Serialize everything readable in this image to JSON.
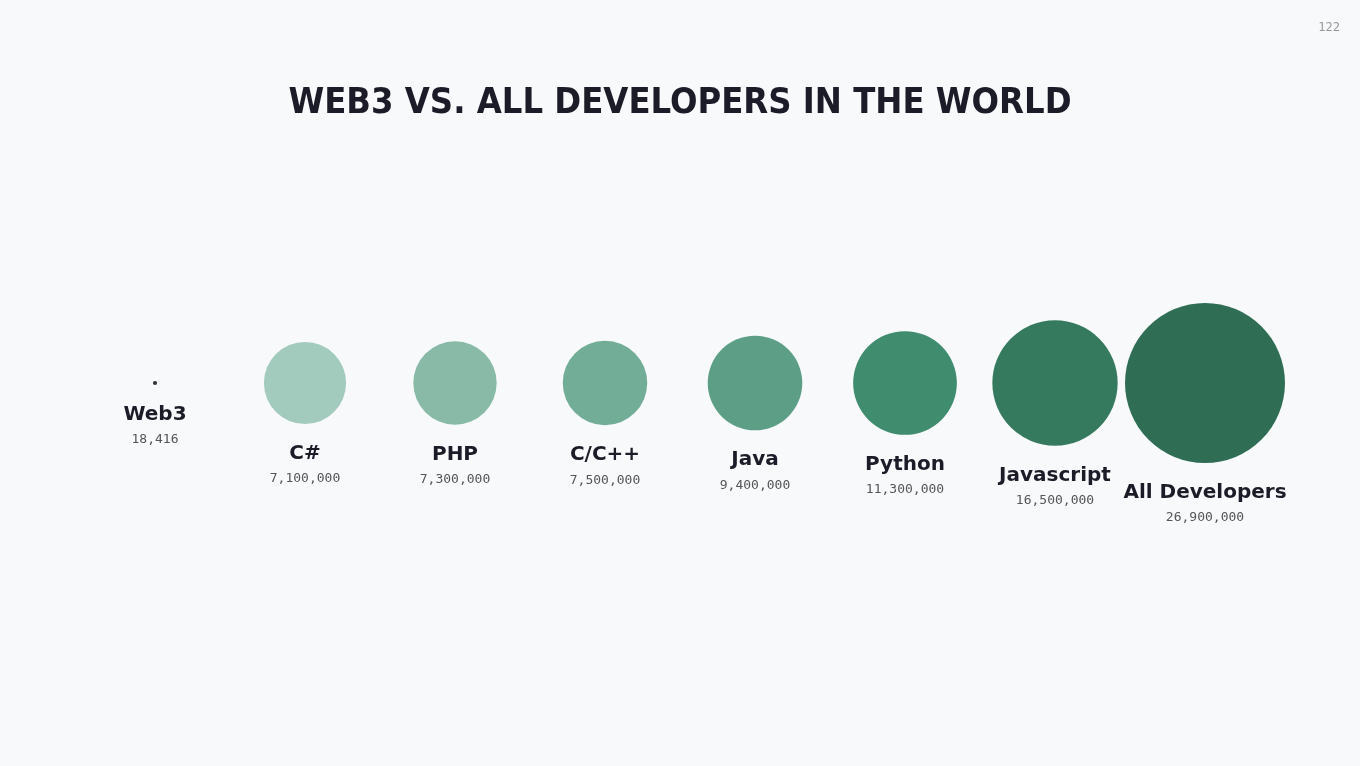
{
  "chart_data": {
    "type": "other",
    "title": "WEB3 VS. ALL DEVELOPERS IN THE WORLD",
    "categories": [
      "Web3",
      "C#",
      "PHP",
      "C/C++",
      "Java",
      "Python",
      "Javascript",
      "All Developers"
    ],
    "values": [
      18416,
      7100000,
      7300000,
      7500000,
      9400000,
      11300000,
      16500000,
      26900000
    ],
    "value_labels": [
      "18,416",
      "7,100,000",
      "7,300,000",
      "7,500,000",
      "9,400,000",
      "11,300,000",
      "16,500,000",
      "26,900,000"
    ],
    "colors": [
      "#333333",
      "#a3cbbd",
      "#88baa7",
      "#72ad97",
      "#5c9f86",
      "#3f8c6e",
      "#357a5f",
      "#2f6e55"
    ],
    "annotations": [
      "122"
    ]
  }
}
